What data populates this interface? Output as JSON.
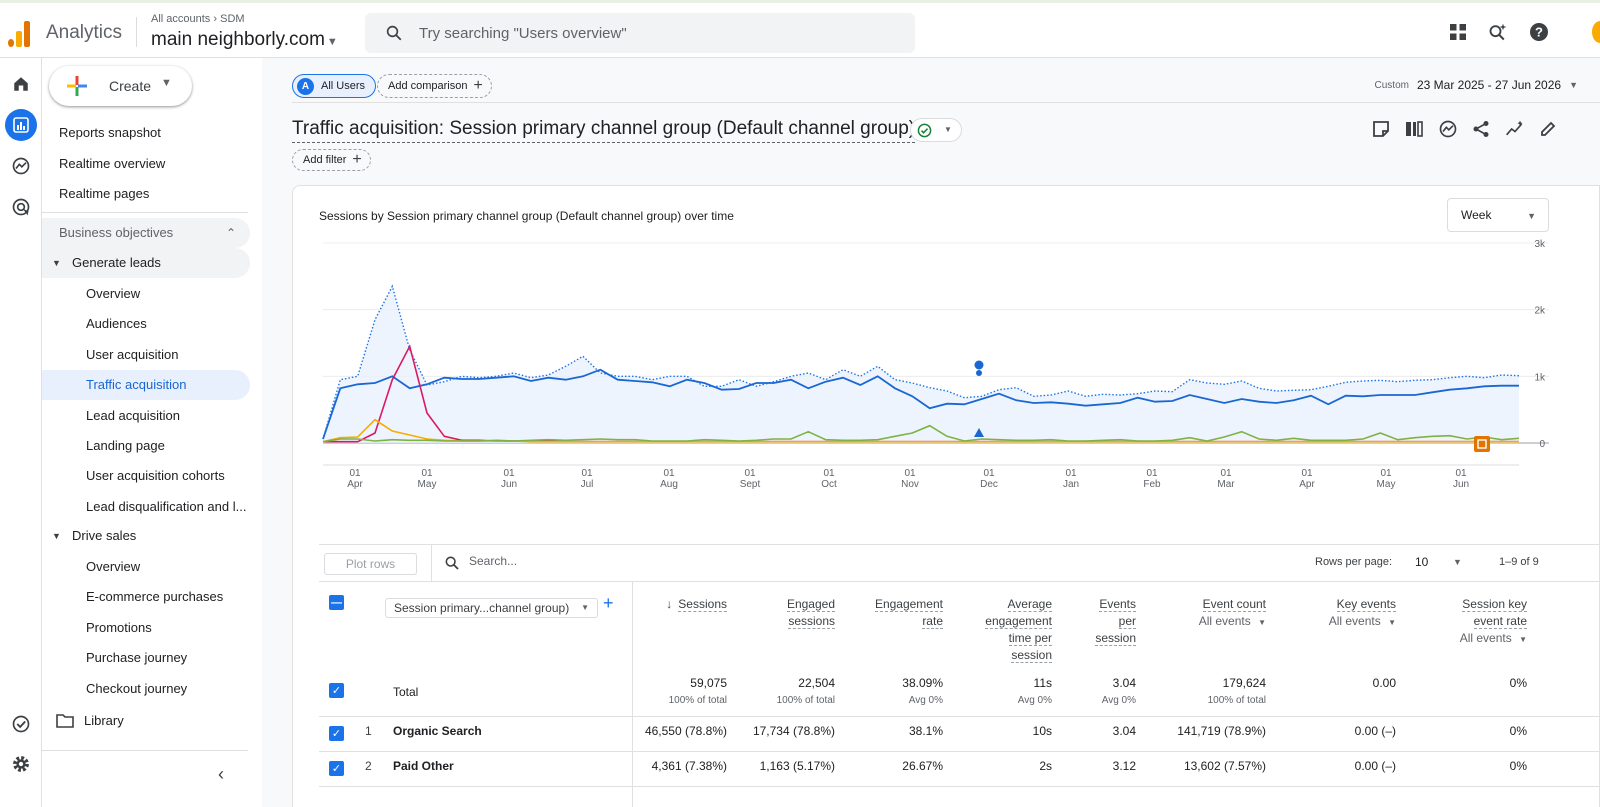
{
  "app": {
    "name": "Analytics",
    "breadcrumb_root": "All accounts",
    "breadcrumb_leaf": "SDM",
    "property": "main neighborly.com"
  },
  "search": {
    "placeholder": "Try searching \"Users overview\""
  },
  "nav": {
    "create_label": "Create",
    "top_items": [
      "Reports snapshot",
      "Realtime overview",
      "Realtime pages"
    ],
    "section": "Business objectives",
    "generate_leads": {
      "label": "Generate leads",
      "items": [
        "Overview",
        "Audiences",
        "User acquisition",
        "Traffic acquisition",
        "Lead acquisition",
        "Landing page",
        "User acquisition cohorts",
        "Lead disqualification and l..."
      ],
      "selected_index": 3
    },
    "drive_sales": {
      "label": "Drive sales",
      "items": [
        "Overview",
        "E-commerce purchases",
        "Promotions",
        "Purchase journey",
        "Checkout journey"
      ]
    },
    "library": "Library"
  },
  "toolbar": {
    "segment_avatar": "A",
    "segment": "All Users",
    "add_comparison": "Add comparison",
    "date_prefix": "Custom",
    "date_range": "23 Mar 2025 - 27 Jun 2026"
  },
  "report": {
    "title": "Traffic acquisition: Session primary channel group (Default channel group)",
    "add_filter": "Add filter"
  },
  "chart_data": {
    "type": "line",
    "title": "Sessions by Session primary channel group (Default channel group) over time",
    "granularity": "Week",
    "y_ticks": [
      "3k",
      "2k",
      "1k",
      "0"
    ],
    "ylim": [
      0,
      3000
    ],
    "x_ticks": [
      {
        "day": "01",
        "month": "Apr"
      },
      {
        "day": "01",
        "month": "May"
      },
      {
        "day": "01",
        "month": "Jun"
      },
      {
        "day": "01",
        "month": "Jul"
      },
      {
        "day": "01",
        "month": "Aug"
      },
      {
        "day": "01",
        "month": "Sept"
      },
      {
        "day": "01",
        "month": "Oct"
      },
      {
        "day": "01",
        "month": "Nov"
      },
      {
        "day": "01",
        "month": "Dec"
      },
      {
        "day": "01",
        "month": "Jan"
      },
      {
        "day": "01",
        "month": "Feb"
      },
      {
        "day": "01",
        "month": "Mar"
      },
      {
        "day": "01",
        "month": "Apr"
      },
      {
        "day": "01",
        "month": "May"
      },
      {
        "day": "01",
        "month": "Jun"
      }
    ],
    "series": [
      {
        "color": "#1a73e8",
        "style": "dotted-area",
        "values": [
          60,
          950,
          1000,
          1850,
          2350,
          1400,
          870,
          920,
          1000,
          980,
          1000,
          1050,
          980,
          1020,
          1150,
          1300,
          1050,
          1000,
          1000,
          950,
          1000,
          1000,
          850,
          850,
          950,
          850,
          920,
          1000,
          1050,
          950,
          1100,
          1000,
          1150,
          950,
          900,
          830,
          780,
          680,
          700,
          800,
          830,
          700,
          720,
          780,
          700,
          730,
          720,
          740,
          780,
          770,
          950,
          900,
          880,
          930,
          820,
          780,
          790,
          800,
          850,
          910,
          930,
          940,
          920,
          940,
          950,
          980,
          1000,
          980,
          1020,
          1010
        ]
      },
      {
        "color": "#1967d2",
        "style": "solid",
        "values": [
          60,
          820,
          880,
          900,
          1000,
          820,
          880,
          980,
          960,
          960,
          980,
          1000,
          930,
          980,
          950,
          1000,
          1100,
          950,
          930,
          910,
          850,
          950,
          900,
          800,
          810,
          900,
          900,
          950,
          820,
          920,
          980,
          870,
          1000,
          820,
          700,
          520,
          590,
          580,
          660,
          740,
          640,
          600,
          610,
          590,
          560,
          580,
          600,
          680,
          620,
          630,
          720,
          660,
          600,
          660,
          620,
          600,
          640,
          710,
          580,
          710,
          700,
          720,
          720,
          720,
          760,
          800,
          820,
          850,
          860,
          860
        ]
      },
      {
        "color": "#d81b60",
        "style": "solid",
        "values": [
          20,
          20,
          20,
          150,
          950,
          1450,
          450,
          100,
          40,
          40,
          30,
          30,
          30,
          30,
          20,
          20,
          20,
          20,
          20,
          20,
          20,
          20,
          20,
          20,
          20,
          20,
          20,
          20,
          20,
          20,
          20,
          20,
          20,
          20,
          20,
          20,
          20,
          20,
          20,
          20,
          20,
          20,
          20,
          20,
          20,
          20,
          20,
          20,
          20,
          20,
          20,
          20,
          20,
          20,
          20,
          20,
          20,
          20,
          20,
          20,
          20,
          20,
          20,
          20,
          20,
          20,
          20,
          20,
          20,
          20
        ]
      },
      {
        "color": "#f9ab00",
        "style": "solid",
        "values": [
          20,
          80,
          90,
          350,
          180,
          120,
          60,
          40,
          30,
          30,
          30,
          30,
          20,
          20,
          20,
          20,
          20,
          20,
          20,
          20,
          20,
          20,
          20,
          20,
          20,
          20,
          20,
          20,
          20,
          20,
          20,
          20,
          20,
          20,
          20,
          20,
          20,
          20,
          20,
          20,
          20,
          20,
          20,
          20,
          20,
          20,
          20,
          20,
          20,
          20,
          20,
          20,
          20,
          20,
          20,
          20,
          20,
          20,
          20,
          20,
          20,
          20,
          20,
          20,
          20,
          20,
          20,
          20,
          20,
          20
        ]
      },
      {
        "color": "#7cb342",
        "style": "solid",
        "values": [
          20,
          60,
          60,
          30,
          50,
          40,
          40,
          30,
          30,
          30,
          40,
          30,
          40,
          50,
          40,
          50,
          60,
          50,
          50,
          30,
          30,
          30,
          50,
          40,
          30,
          40,
          60,
          60,
          170,
          50,
          40,
          40,
          50,
          100,
          150,
          260,
          100,
          30,
          60,
          50,
          40,
          40,
          50,
          30,
          30,
          40,
          50,
          30,
          30,
          40,
          80,
          30,
          90,
          170,
          60,
          40,
          70,
          40,
          40,
          40,
          60,
          150,
          50,
          80,
          100,
          110,
          60,
          90,
          50,
          70
        ]
      }
    ]
  },
  "table": {
    "plot_rows": "Plot rows",
    "search_placeholder": "Search...",
    "rows_per_page_label": "Rows per page:",
    "rows_per_page": "10",
    "page_range": "1–9 of 9",
    "dimension": "Session primary...channel group)",
    "columns": [
      {
        "lines": [
          "Sessions"
        ],
        "sort": "↓"
      },
      {
        "lines": [
          "Engaged",
          "sessions"
        ]
      },
      {
        "lines": [
          "Engagement",
          "rate"
        ]
      },
      {
        "lines": [
          "Average",
          "engagement",
          "time per",
          "session"
        ]
      },
      {
        "lines": [
          "Events",
          "per",
          "session"
        ]
      },
      {
        "lines": [
          "Event count"
        ],
        "sub": "All events"
      },
      {
        "lines": [
          "Key events"
        ],
        "sub": "All events"
      },
      {
        "lines": [
          "Session key",
          "event rate"
        ],
        "sub": "All events"
      }
    ],
    "total": {
      "label": "Total",
      "values": [
        "59,075",
        "22,504",
        "38.09%",
        "11s",
        "3.04",
        "179,624",
        "0.00",
        "0%"
      ],
      "subs": [
        "100% of total",
        "100% of total",
        "Avg 0%",
        "Avg 0%",
        "Avg 0%",
        "100% of total",
        "",
        ""
      ]
    },
    "rows": [
      {
        "num": "1",
        "name": "Organic Search",
        "values": [
          "46,550 (78.8%)",
          "17,734 (78.8%)",
          "38.1%",
          "10s",
          "3.04",
          "141,719 (78.9%)",
          "0.00 (–)",
          "0%"
        ]
      },
      {
        "num": "2",
        "name": "Paid Other",
        "values": [
          "4,361 (7.38%)",
          "1,163 (5.17%)",
          "26.67%",
          "2s",
          "3.12",
          "13,602 (7.57%)",
          "0.00 (–)",
          "0%"
        ]
      }
    ]
  }
}
